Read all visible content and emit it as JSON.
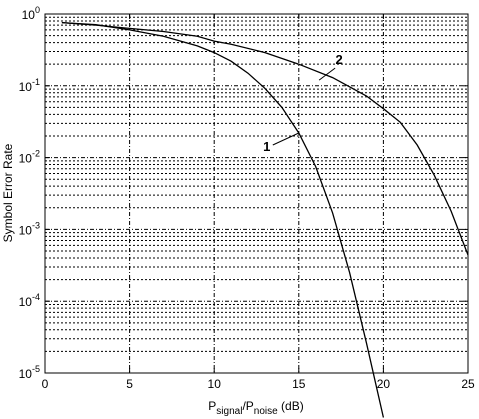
{
  "chart_data": {
    "type": "line",
    "title": "",
    "xlabel": {
      "main": "P",
      "sub1": "signal",
      "mid": "/P",
      "sub2": "noise",
      "tail": " (dB)"
    },
    "ylabel": "Symbol Error Rate",
    "xlim": [
      0,
      25
    ],
    "ylim": [
      1e-05,
      1
    ],
    "yscale": "log",
    "grid": true,
    "x_ticks": [
      "0",
      "5",
      "10",
      "15",
      "20",
      "25"
    ],
    "y_ticks": [
      {
        "base": "10",
        "exp": "0"
      },
      {
        "base": "10",
        "exp": "-1"
      },
      {
        "base": "10",
        "exp": "-2"
      },
      {
        "base": "10",
        "exp": "-3"
      },
      {
        "base": "10",
        "exp": "-4"
      },
      {
        "base": "10",
        "exp": "-5"
      }
    ],
    "series": [
      {
        "name": "1",
        "x": [
          1,
          3,
          5,
          7,
          9,
          10,
          11,
          12,
          13,
          14,
          15,
          16,
          17,
          18,
          19,
          20
        ],
        "y": [
          0.76,
          0.71,
          0.6,
          0.49,
          0.36,
          0.29,
          0.22,
          0.15,
          0.092,
          0.05,
          0.022,
          0.0075,
          0.0017,
          0.00025,
          2.6e-05,
          2.4e-06
        ]
      },
      {
        "name": "2",
        "x": [
          1,
          3,
          5,
          7,
          9,
          10,
          11,
          13,
          15,
          17,
          19,
          20,
          21,
          22,
          23,
          24,
          25
        ],
        "y": [
          0.76,
          0.7,
          0.63,
          0.57,
          0.49,
          0.42,
          0.38,
          0.29,
          0.2,
          0.13,
          0.072,
          0.048,
          0.031,
          0.015,
          0.0057,
          0.0018,
          0.00044
        ]
      }
    ],
    "annotations": [
      {
        "text": "1",
        "series": "1",
        "x": 15,
        "y": 0.022
      },
      {
        "text": "2",
        "series": "2",
        "x": 16.2,
        "y": 0.12
      }
    ]
  }
}
